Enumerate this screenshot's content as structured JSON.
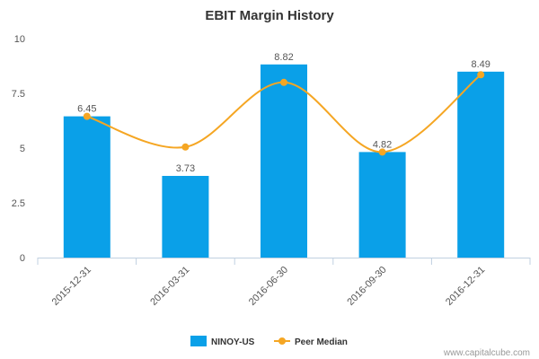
{
  "chart_data": {
    "type": "bar",
    "title": "EBIT Margin History",
    "xlabel": "",
    "ylabel": "",
    "ylim": [
      0,
      10
    ],
    "yticks": [
      {
        "value": 0,
        "label": "0"
      },
      {
        "value": 2.5,
        "label": "2.5"
      },
      {
        "value": 5,
        "label": "5"
      },
      {
        "value": 7.5,
        "label": "7.5"
      },
      {
        "value": 10,
        "label": "10"
      }
    ],
    "categories": [
      "2015-12-31",
      "2016-03-31",
      "2016-06-30",
      "2016-09-30",
      "2016-12-31"
    ],
    "series": [
      {
        "name": "NINOY-US",
        "type": "bar",
        "color": "#0aa0e8",
        "values": [
          6.45,
          3.73,
          8.82,
          4.82,
          8.49
        ],
        "labels": [
          "6.45",
          "3.73",
          "8.82",
          "4.82",
          "8.49"
        ]
      },
      {
        "name": "Peer Median",
        "type": "line",
        "smooth": true,
        "color": "#f5a623",
        "values": [
          6.45,
          5.05,
          8.0,
          4.82,
          8.35
        ]
      }
    ],
    "legend_position": "bottom",
    "grid": false
  },
  "credit": "www.capitalcube.com"
}
